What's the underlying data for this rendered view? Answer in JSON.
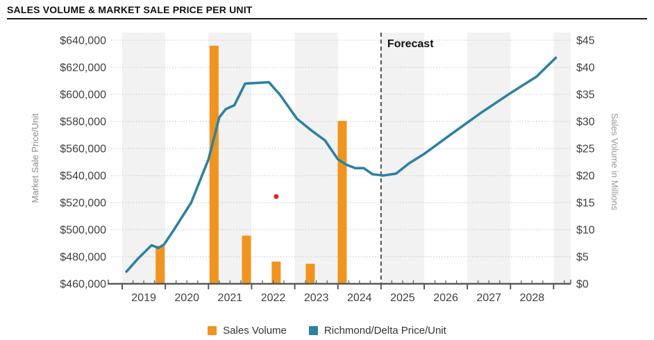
{
  "chart_data": {
    "type": "combo-bar-line",
    "title": "SALES VOLUME & MARKET SALE PRICE PER UNIT",
    "left_axis": {
      "label": "Market Sale Price/Unit",
      "min": 460000,
      "max": 640000,
      "tick_step": 20000,
      "tick_labels": [
        "$460,000",
        "$480,000",
        "$500,000",
        "$520,000",
        "$540,000",
        "$560,000",
        "$580,000",
        "$600,000",
        "$620,000",
        "$640,000"
      ]
    },
    "right_axis": {
      "label": "Sales Volume in Millions",
      "min": 0,
      "max": 45,
      "tick_step": 5,
      "tick_labels": [
        "$0",
        "$5",
        "$10",
        "$15",
        "$20",
        "$25",
        "$30",
        "$35",
        "$40",
        "$45"
      ]
    },
    "x_axis": {
      "year_labels": [
        "2019",
        "2020",
        "2021",
        "2022",
        "2023",
        "2024",
        "2025",
        "2026",
        "2027",
        "2028"
      ],
      "start": 2019,
      "end": 2029.38,
      "minor_tick_interval": 0.25,
      "alternating_bands": true
    },
    "forecast": {
      "at_year": 2025,
      "label": "Forecast"
    },
    "grid": {
      "horizontal": true,
      "style": "dotted"
    },
    "series": [
      {
        "name": "Sales Volume",
        "type": "bar",
        "axis": "right",
        "color": "#f0941f",
        "points": [
          {
            "x": 2019.88,
            "value_millions": 7.0
          },
          {
            "x": 2021.13,
            "value_millions": 44.0
          },
          {
            "x": 2021.88,
            "value_millions": 8.9
          },
          {
            "x": 2022.57,
            "value_millions": 4.1
          },
          {
            "x": 2023.36,
            "value_millions": 3.7
          },
          {
            "x": 2024.1,
            "value_millions": 30.1
          }
        ]
      },
      {
        "name": "Richmond/Delta Price/Unit",
        "type": "line",
        "axis": "left",
        "color": "#2e81a1",
        "points": [
          [
            2019.1,
            469000
          ],
          [
            2019.35,
            478000
          ],
          [
            2019.68,
            488500
          ],
          [
            2019.84,
            486500
          ],
          [
            2019.97,
            489000
          ],
          [
            2020.2,
            500000
          ],
          [
            2020.6,
            520000
          ],
          [
            2021.0,
            552000
          ],
          [
            2021.25,
            583000
          ],
          [
            2021.4,
            589000
          ],
          [
            2021.6,
            592000
          ],
          [
            2021.85,
            608000
          ],
          [
            2022.15,
            608500
          ],
          [
            2022.4,
            609000
          ],
          [
            2022.65,
            600000
          ],
          [
            2023.05,
            582000
          ],
          [
            2023.4,
            573000
          ],
          [
            2023.7,
            566000
          ],
          [
            2024.0,
            552000
          ],
          [
            2024.2,
            548000
          ],
          [
            2024.4,
            545500
          ],
          [
            2024.6,
            545500
          ],
          [
            2024.8,
            541000
          ],
          [
            2025.05,
            540000
          ],
          [
            2025.35,
            541500
          ],
          [
            2025.65,
            549000
          ],
          [
            2026.0,
            556000
          ],
          [
            2026.6,
            570000
          ],
          [
            2027.3,
            586000
          ],
          [
            2028.0,
            601000
          ],
          [
            2028.6,
            613000
          ],
          [
            2029.05,
            627000
          ]
        ]
      }
    ],
    "outlier_point": {
      "x": 2022.57,
      "price": 524500,
      "color": "#e02424"
    },
    "legend": [
      {
        "label": "Sales Volume",
        "color": "#f0941f",
        "marker": "square"
      },
      {
        "label": "Richmond/Delta Price/Unit",
        "color": "#2e81a1",
        "marker": "square"
      }
    ],
    "colors": {
      "band_gray": "#f2f2f2",
      "gridline": "#c4c4c4",
      "axis_line": "#595959",
      "forecast_line": "#4d4d4d"
    }
  }
}
